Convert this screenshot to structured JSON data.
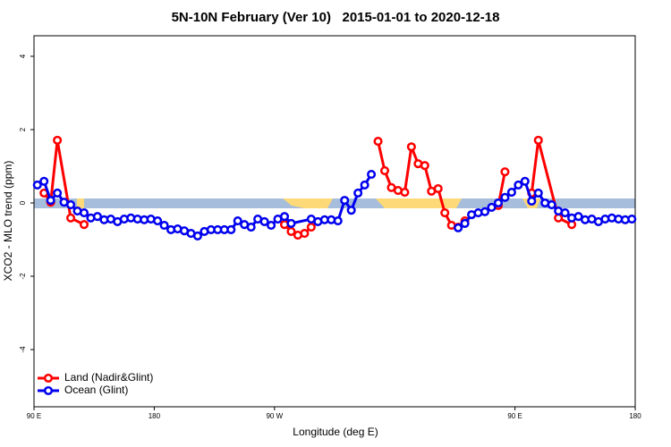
{
  "chart_data": {
    "type": "line",
    "title": "5N-10N February (Ver 10)   2015-01-01 to 2020-12-18",
    "x_label": "Longitude (deg E)",
    "y_label": "XCO2 - MLO trend (ppm)",
    "xlim": [
      90,
      540
    ],
    "ylim": [
      -5.56,
      4.56
    ],
    "xticks": [
      {
        "value": 90,
        "label": "90 E"
      },
      180,
      {
        "value": 270,
        "label": "90 W"
      },
      {
        "value": 450,
        "label": "90 E"
      },
      {
        "value": 540,
        "label": "180"
      }
    ],
    "yticks": [
      -4,
      -2,
      0,
      2,
      4
    ],
    "legend": "bottom-left",
    "series": [
      {
        "name": "Land (Nadir&Glint)",
        "color": "#ff0000",
        "x": [
          97.5,
          102.5,
          107.5,
          117.5,
          127.5,
          135,
          277.5,
          282.5,
          287.5,
          292.5,
          297.5,
          300,
          347.5,
          352.5,
          357.5,
          362.5,
          367.5,
          372.5,
          377.5,
          382.5,
          387.5,
          392.5,
          397.5,
          402.5,
          407.5,
          412.5,
          420,
          437.5,
          442.5,
          460,
          462.5,
          467.5,
          482.5,
          492.5
        ],
        "values": [
          0.27,
          0.02,
          1.71,
          -0.41,
          -0.59,
          null,
          -0.59,
          -0.78,
          -0.88,
          -0.83,
          -0.66,
          null,
          1.68,
          0.88,
          0.42,
          0.34,
          0.29,
          1.53,
          1.07,
          1.02,
          0.32,
          0.39,
          -0.27,
          -0.61,
          -0.66,
          -0.49,
          null,
          -0.07,
          0.85,
          null,
          0.27,
          1.71,
          -0.41,
          -0.59
        ]
      },
      {
        "name": "Ocean (Glint)",
        "color": "#0000ee",
        "x": [
          92.5,
          97.5,
          102.5,
          107.5,
          112.5,
          117.5,
          122.5,
          127.5,
          132.5,
          137.5,
          142.5,
          147.5,
          152.5,
          157.5,
          162.5,
          167.5,
          172.5,
          177.5,
          182.5,
          187.5,
          192.5,
          197.5,
          202.5,
          207.5,
          212.5,
          217.5,
          222.5,
          227.5,
          232.5,
          237.5,
          242.5,
          247.5,
          252.5,
          257.5,
          262.5,
          267.5,
          272.5,
          277.5,
          282.5,
          297.5,
          302.5,
          307.5,
          312.5,
          317.5,
          322.5,
          327.5,
          332.5,
          337.5,
          342.5,
          370,
          407.5,
          412.5,
          417.5,
          422.5,
          427.5,
          432.5,
          437.5,
          442.5,
          447.5,
          452.5,
          457.5,
          462.5,
          467.5,
          472.5,
          477.5,
          482.5,
          487.5,
          492.5,
          497.5,
          502.5,
          507.5,
          512.5,
          517.5,
          522.5,
          527.5,
          532.5,
          537.5
        ],
        "values": [
          0.49,
          0.59,
          0.07,
          0.27,
          0.02,
          -0.05,
          -0.22,
          -0.27,
          -0.41,
          -0.37,
          -0.46,
          -0.44,
          -0.51,
          -0.44,
          -0.41,
          -0.44,
          -0.46,
          -0.44,
          -0.49,
          -0.61,
          -0.73,
          -0.71,
          -0.76,
          -0.83,
          -0.9,
          -0.78,
          -0.73,
          -0.73,
          -0.73,
          -0.73,
          -0.49,
          -0.59,
          -0.66,
          -0.44,
          -0.51,
          -0.61,
          -0.44,
          -0.37,
          -0.56,
          -0.44,
          -0.51,
          -0.46,
          -0.46,
          -0.49,
          0.07,
          -0.2,
          0.27,
          0.49,
          0.78,
          null,
          -0.68,
          -0.56,
          -0.32,
          -0.27,
          -0.24,
          -0.12,
          0.0,
          0.15,
          0.29,
          0.49,
          0.59,
          0.05,
          0.27,
          0.0,
          -0.05,
          -0.22,
          -0.27,
          -0.41,
          -0.37,
          -0.46,
          -0.44,
          -0.51,
          -0.44,
          -0.41,
          -0.44,
          -0.46,
          -0.44
        ]
      }
    ]
  }
}
